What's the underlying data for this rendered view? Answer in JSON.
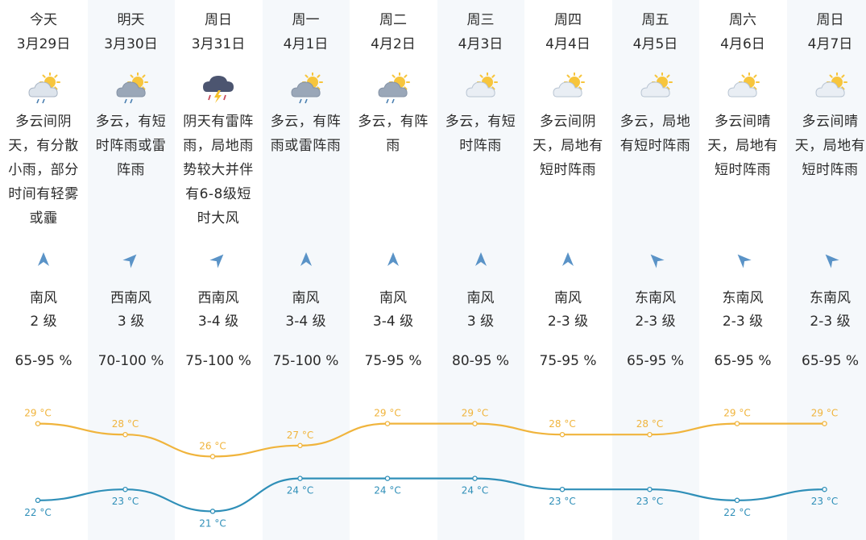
{
  "days": [
    {
      "day": "今天",
      "date": "3月29日",
      "icon": "partly-cloudy-rain-icon",
      "desc": [
        "多云间阴",
        "天，有分散",
        "小雨，部分",
        "时间有轻雾",
        "或霾"
      ],
      "wind_dir": "南风",
      "wind_level": "2 级",
      "wind_heading": "south",
      "humidity": "65-95 %"
    },
    {
      "day": "明天",
      "date": "3月30日",
      "icon": "cloud-rain-sun-icon",
      "desc": [
        "多云，有短",
        "时阵雨或雷",
        "阵雨"
      ],
      "wind_dir": "西南风",
      "wind_level": "3 级",
      "wind_heading": "southwest",
      "humidity": "70-100 %"
    },
    {
      "day": "周日",
      "date": "3月31日",
      "icon": "thunderstorm-icon",
      "desc": [
        "阴天有雷阵",
        "雨，局地雨",
        "势较大并伴",
        "有6-8级短",
        "时大风"
      ],
      "wind_dir": "西南风",
      "wind_level": "3-4 级",
      "wind_heading": "southwest",
      "humidity": "75-100 %"
    },
    {
      "day": "周一",
      "date": "4月1日",
      "icon": "cloud-rain-sun-icon",
      "desc": [
        "多云，有阵",
        "雨或雷阵雨"
      ],
      "wind_dir": "南风",
      "wind_level": "3-4 级",
      "wind_heading": "south",
      "humidity": "75-100 %"
    },
    {
      "day": "周二",
      "date": "4月2日",
      "icon": "cloud-rain-sun-icon",
      "desc": [
        "多云，有阵",
        "雨"
      ],
      "wind_dir": "南风",
      "wind_level": "3-4 级",
      "wind_heading": "south",
      "humidity": "75-95 %"
    },
    {
      "day": "周三",
      "date": "4月3日",
      "icon": "partly-cloudy-icon",
      "desc": [
        "多云，有短",
        "时阵雨"
      ],
      "wind_dir": "南风",
      "wind_level": "3 级",
      "wind_heading": "south",
      "humidity": "80-95 %"
    },
    {
      "day": "周四",
      "date": "4月4日",
      "icon": "partly-cloudy-icon",
      "desc": [
        "多云间阴",
        "天，局地有",
        "短时阵雨"
      ],
      "wind_dir": "南风",
      "wind_level": "2-3 级",
      "wind_heading": "south",
      "humidity": "75-95 %"
    },
    {
      "day": "周五",
      "date": "4月5日",
      "icon": "partly-cloudy-icon",
      "desc": [
        "多云，局地",
        "有短时阵雨"
      ],
      "wind_dir": "东南风",
      "wind_level": "2-3 级",
      "wind_heading": "southeast",
      "humidity": "65-95 %"
    },
    {
      "day": "周六",
      "date": "4月6日",
      "icon": "partly-cloudy-icon",
      "desc": [
        "多云间晴",
        "天，局地有",
        "短时阵雨"
      ],
      "wind_dir": "东南风",
      "wind_level": "2-3 级",
      "wind_heading": "southeast",
      "humidity": "65-95 %"
    },
    {
      "day": "周日",
      "date": "4月7日",
      "icon": "partly-cloudy-icon",
      "desc": [
        "多云间晴",
        "天，局地有",
        "短时阵雨"
      ],
      "wind_dir": "东南风",
      "wind_level": "2-3 级",
      "wind_heading": "southeast",
      "humidity": "65-95 %"
    }
  ],
  "chart_data": {
    "type": "line",
    "categories": [
      "3月29日",
      "3月30日",
      "3月31日",
      "4月1日",
      "4月2日",
      "4月3日",
      "4月4日",
      "4月5日",
      "4月6日",
      "4月7日"
    ],
    "unit": "°C",
    "ylim": [
      20,
      30
    ],
    "series": [
      {
        "values": [
          29,
          28,
          26,
          27,
          29,
          29,
          28,
          28,
          29,
          29
        ],
        "color": "#f0b43c"
      },
      {
        "values": [
          22,
          23,
          21,
          24,
          24,
          24,
          23,
          23,
          22,
          23
        ],
        "color": "#2f8fb8"
      }
    ]
  },
  "colors": {
    "arrow": "#5a93c7",
    "alt_column": "#f5f8fb",
    "text": "#2b2b2b"
  }
}
